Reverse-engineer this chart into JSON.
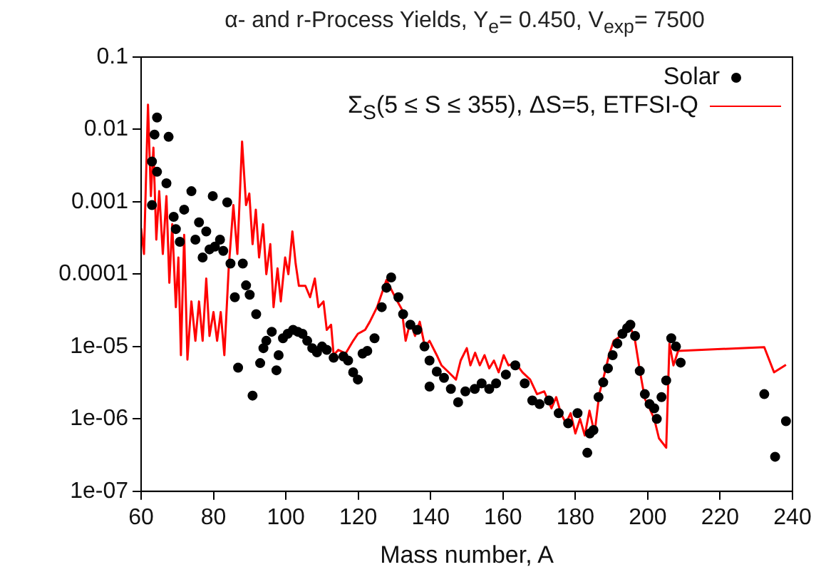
{
  "chart_data": {
    "type": "line",
    "title": "α- and r-Process Yields, Y$_{e}$= 0.450, V$_{exp}$= 7500",
    "xlabel": "Mass number, A",
    "log": "y",
    "grid": false,
    "legend": "top right",
    "xlim": [
      60,
      240
    ],
    "xticks": [
      60,
      80,
      100,
      120,
      140,
      160,
      180,
      200,
      220,
      240
    ],
    "ylim": [
      1e-07,
      0.1
    ],
    "yticks": [
      0.1,
      0.01,
      0.001,
      0.0001,
      {
        "value": 1e-05,
        "label": "1e-05"
      },
      {
        "value": 1e-06,
        "label": "1e-06"
      },
      {
        "value": 1e-07,
        "label": "1e-07"
      }
    ],
    "series": [
      {
        "name": "Solar",
        "type": "scatter",
        "marker": "circle",
        "color": "#000000",
        "x": [
          63,
          63,
          63.7,
          64.4,
          64.4,
          67,
          67.6,
          69,
          69.6,
          70.7,
          71.9,
          73.9,
          75,
          76,
          77,
          78,
          78.9,
          79.8,
          80.4,
          81.8,
          82.7,
          83.8,
          84.7,
          85.9,
          86.8,
          88.1,
          89,
          90,
          90.8,
          91.8,
          92.9,
          93.8,
          94.6,
          96.1,
          97.4,
          98,
          99.2,
          100.5,
          102,
          103.3,
          104.6,
          105.9,
          107.3,
          108.6,
          110,
          111.3,
          113.2,
          115.9,
          117.2,
          118.6,
          119.9,
          121.2,
          122.5,
          124.5,
          126.5,
          127.8,
          129.1,
          131.1,
          132.4,
          134.4,
          136.3,
          138.3,
          139.7,
          139.7,
          141.7,
          143.7,
          145.6,
          147.6,
          149.6,
          152.2,
          154.1,
          156.2,
          158.1,
          160.8,
          163.4,
          166,
          168.1,
          170.1,
          172.7,
          175.4,
          178,
          180.6,
          183.3,
          184,
          185,
          186.4,
          187.7,
          189,
          190.3,
          191.6,
          193,
          194.3,
          195.2,
          196.5,
          197.8,
          199.2,
          200.5,
          201.8,
          202.5,
          203.8,
          205.1,
          206.5,
          207.8,
          209.1,
          232.2,
          235.2,
          238.2
        ],
        "values": [
          0.0036,
          0.0009,
          0.0085,
          0.0146,
          0.0026,
          0.0018,
          0.0079,
          0.00062,
          0.00042,
          0.00028,
          0.00078,
          0.0014,
          0.0003,
          0.00052,
          0.00017,
          0.00039,
          0.00022,
          0.0012,
          0.00024,
          0.0003,
          0.00021,
          0.00098,
          0.00014,
          4.8e-05,
          5.1e-06,
          0.00014,
          7e-05,
          5.2e-05,
          2.1e-06,
          2.8e-05,
          5.9e-06,
          9.5e-06,
          1.2e-05,
          1.6e-05,
          4.7e-06,
          7.6e-06,
          1.3e-05,
          1.5e-05,
          1.7e-05,
          1.6e-05,
          1.5e-05,
          1.2e-05,
          9.5e-06,
          8.3e-06,
          1e-05,
          9e-06,
          7e-06,
          7.3e-06,
          6.4e-06,
          4.4e-06,
          3.5e-06,
          8e-06,
          8.7e-06,
          1.3e-05,
          3.5e-05,
          6.5e-05,
          9e-05,
          4.8e-05,
          2.8e-05,
          2e-05,
          1.7e-05,
          1e-05,
          6.4e-06,
          2.8e-06,
          4.5e-06,
          3.7e-06,
          2.6e-06,
          1.7e-06,
          2.4e-06,
          2.6e-06,
          3.1e-06,
          2.6e-06,
          3.1e-06,
          4.1e-06,
          5.5e-06,
          3.1e-06,
          1.8e-06,
          1.6e-06,
          1.8e-06,
          1.2e-06,
          8.7e-07,
          1.2e-06,
          3.4e-07,
          6.3e-07,
          7e-07,
          2e-06,
          3.2e-06,
          5e-06,
          7.6e-06,
          1.1e-05,
          1.5e-05,
          1.8e-05,
          2e-05,
          1.4e-05,
          4.6e-06,
          2.2e-06,
          1.6e-06,
          1.4e-06,
          1e-06,
          2e-06,
          3.4e-06,
          1.3e-05,
          1e-05,
          6e-06,
          2.2e-06,
          3e-07,
          9.3e-07
        ]
      },
      {
        "name": "Σ$_{S}$(5 ≤ S ≤ 355), ΔS=5, ETFSI-Q",
        "marker": "none",
        "color": "#ff0000",
        "x": [
          60,
          60.8,
          61.9,
          62.7,
          63.4,
          64.2,
          65,
          66,
          67,
          67.8,
          68.6,
          69.6,
          70.3,
          71,
          71.9,
          72.8,
          73.9,
          75,
          76,
          77,
          78,
          78.9,
          80,
          81,
          82,
          83,
          84.2,
          85.5,
          86.6,
          87.9,
          89,
          89.9,
          90.8,
          91.7,
          92.6,
          93.7,
          94.6,
          95.7,
          96.6,
          97.7,
          98.6,
          99.8,
          100.7,
          101.8,
          102.7,
          103.6,
          105.4,
          106.7,
          108,
          109,
          110.4,
          111.3,
          112.5,
          113.2,
          114.5,
          116.5,
          118.6,
          119.9,
          121.9,
          123.2,
          125.2,
          127.8,
          130.5,
          132,
          133.1,
          134.4,
          135.7,
          137,
          138.4,
          139.7,
          141.7,
          143,
          145,
          147,
          148.3,
          150,
          151,
          152.3,
          153.6,
          154.9,
          156.2,
          157.5,
          158.8,
          160.2,
          161.5,
          163.5,
          165.4,
          167.5,
          169.4,
          171.4,
          173.4,
          174.7,
          176,
          177.4,
          178.7,
          180,
          181.3,
          182.6,
          183.9,
          185.3,
          186.6,
          188,
          189.3,
          190.6,
          192.6,
          195.2,
          196.5,
          197.8,
          199.2,
          200.5,
          201.8,
          203.1,
          205.1,
          206,
          207.1,
          208.4,
          232.2,
          234.9,
          238.2
        ],
        "values": [
          0.00043,
          0.00019,
          0.022,
          0.0012,
          0.0056,
          0.0003,
          0.0014,
          0.00019,
          0.0012,
          7.6e-05,
          0.00049,
          3.5e-05,
          0.00017,
          7.6e-06,
          0.00035,
          6.6e-06,
          4.2e-05,
          1.2e-05,
          4.2e-05,
          1.2e-05,
          8.7e-05,
          1.4e-05,
          3e-05,
          1.2e-05,
          3e-05,
          7.6e-06,
          0.00012,
          0.0009,
          0.00019,
          0.0068,
          0.0009,
          0.0013,
          0.00026,
          0.00078,
          0.00017,
          0.00049,
          0.0001,
          0.00026,
          3.5e-05,
          0.00012,
          4.2e-05,
          0.00017,
          0.0001,
          0.00039,
          0.00014,
          6.9e-05,
          6.9e-05,
          4.8e-05,
          8.7e-05,
          3.5e-05,
          4.2e-05,
          1.7e-05,
          2e-05,
          7.6e-06,
          9e-06,
          8e-06,
          1.2e-05,
          1.5e-05,
          1.7e-05,
          2.2e-05,
          3.5e-05,
          8.3e-05,
          4.5e-05,
          3.3e-05,
          1.2e-05,
          2.2e-05,
          1.4e-05,
          2.2e-05,
          1e-05,
          1.2e-05,
          7.6e-06,
          5.5e-06,
          4.4e-06,
          3.5e-06,
          6.4e-06,
          9.5e-06,
          5.5e-06,
          8.2e-06,
          5.5e-06,
          7.6e-06,
          5e-06,
          6.4e-06,
          4.4e-06,
          7.6e-06,
          5.5e-06,
          5.9e-06,
          4.4e-06,
          3.5e-06,
          2.2e-06,
          2.4e-06,
          1.4e-06,
          2e-06,
          1.2e-06,
          8.7e-07,
          1.2e-06,
          6.3e-07,
          1e-06,
          5.9e-07,
          1.3e-06,
          6.3e-07,
          2.2e-06,
          4.1e-06,
          7.6e-06,
          1.2e-05,
          1.4e-05,
          1.9e-05,
          1.2e-05,
          4.7e-06,
          1.9e-06,
          1.4e-06,
          1e-06,
          5.4e-07,
          4e-07,
          1.1e-05,
          5.5e-06,
          8.7e-06,
          9.8e-06,
          4.4e-06,
          5.6e-06
        ]
      }
    ]
  }
}
